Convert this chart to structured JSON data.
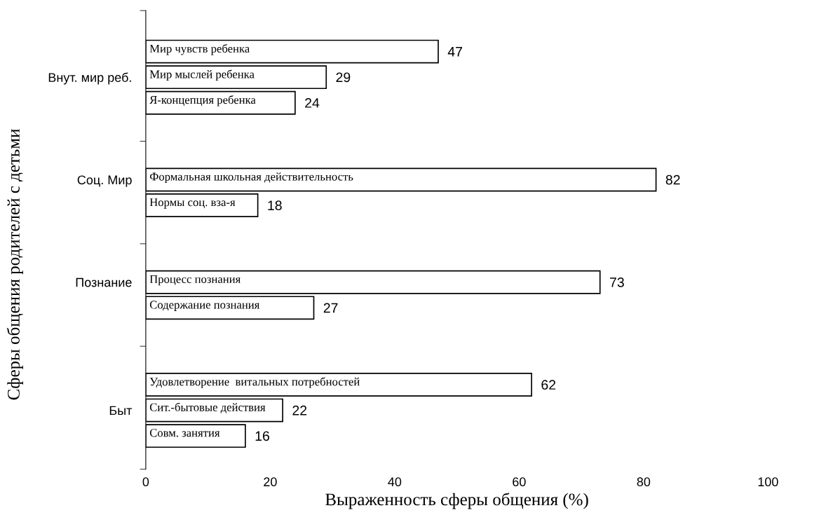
{
  "chart_data": {
    "type": "bar",
    "orientation": "horizontal",
    "categories": [
      "Мир чувств ребенка",
      "Мир мыслей ребенка",
      "Я-концепция ребенка",
      null,
      null,
      "Формальная школьная действительность",
      "Нормы соц. вза-я",
      null,
      null,
      "Процесс познания",
      "Содержание познания",
      null,
      null,
      "Удовлетворение  витальных потребностей",
      "Сит.-бытовые действия",
      "Совм. занятия"
    ],
    "values": [
      47,
      29,
      24,
      null,
      null,
      82,
      18,
      null,
      null,
      73,
      27,
      null,
      null,
      62,
      22,
      16
    ],
    "color": "#ffffff",
    "xlim": [
      0,
      100
    ],
    "xticks": [
      0,
      20,
      40,
      60,
      80,
      100
    ],
    "xlabel": "Выраженность сферы общения (%)",
    "annotations": [
      "Внут. мир реб.",
      "Соц. Мир",
      "Познание",
      "Быт",
      "Сферы общения родителей с детьми"
    ],
    "data_labels": true,
    "grid": false
  }
}
